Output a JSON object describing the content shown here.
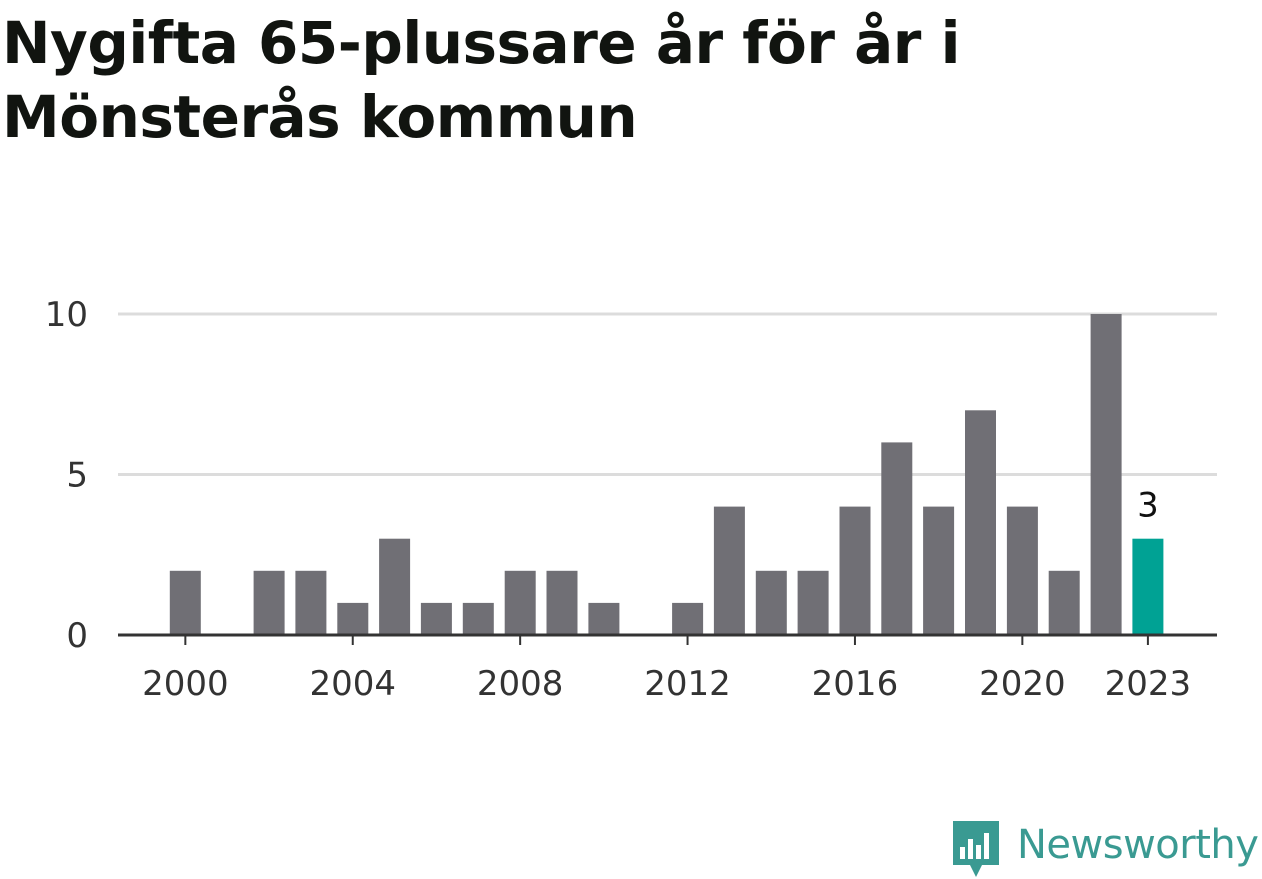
{
  "title": "Nygifta 65-plussare år för år i Mönsterås kommun",
  "brand": {
    "name": "Newsworthy",
    "color": "#3a9a92",
    "icon": "newsworthy-logo-icon"
  },
  "colors": {
    "bar": "#706f75",
    "highlight": "#00a294",
    "grid": "#dcdcdc",
    "axis": "#333333",
    "text": "#333333"
  },
  "chart_data": {
    "type": "bar",
    "title": "Nygifta 65-plussare år för år i Mönsterås kommun",
    "xlabel": "",
    "ylabel": "",
    "categories": [
      1999,
      2000,
      2001,
      2002,
      2003,
      2004,
      2005,
      2006,
      2007,
      2008,
      2009,
      2010,
      2011,
      2012,
      2013,
      2014,
      2015,
      2016,
      2017,
      2018,
      2019,
      2020,
      2021,
      2022,
      2023
    ],
    "values": [
      0,
      2,
      0,
      2,
      2,
      1,
      3,
      1,
      1,
      2,
      2,
      1,
      0,
      1,
      4,
      2,
      2,
      4,
      6,
      4,
      7,
      4,
      2,
      10,
      3
    ],
    "highlight_index": 24,
    "highlight_label": "3",
    "ylim": [
      0,
      10
    ],
    "yticks": [
      0,
      5,
      10
    ],
    "xticks": [
      "2000",
      "2004",
      "2008",
      "2012",
      "2016",
      "2020",
      "2023"
    ],
    "grid": true,
    "legend": "none"
  }
}
